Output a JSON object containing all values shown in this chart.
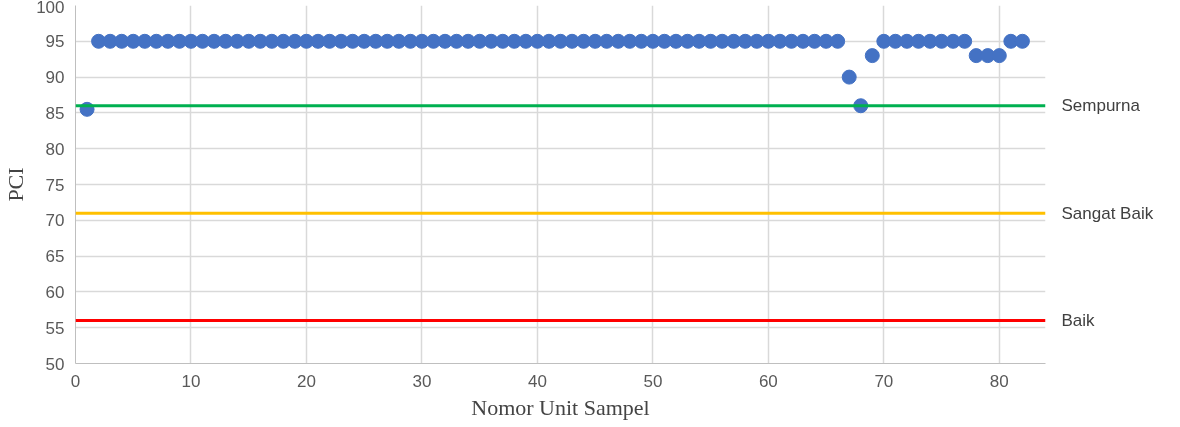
{
  "chart_data": {
    "type": "scatter",
    "xlabel": "Nomor Unit Sampel",
    "ylabel": "PCI",
    "x": [
      1,
      2,
      3,
      4,
      5,
      6,
      7,
      8,
      9,
      10,
      11,
      12,
      13,
      14,
      15,
      16,
      17,
      18,
      19,
      20,
      21,
      22,
      23,
      24,
      25,
      26,
      27,
      28,
      29,
      30,
      31,
      32,
      33,
      34,
      35,
      36,
      37,
      38,
      39,
      40,
      41,
      42,
      43,
      44,
      45,
      46,
      47,
      48,
      49,
      50,
      51,
      52,
      53,
      54,
      55,
      56,
      57,
      58,
      59,
      60,
      61,
      62,
      63,
      64,
      65,
      66,
      67,
      68,
      69,
      70,
      71,
      72,
      73,
      74,
      75,
      76,
      77,
      78,
      79,
      80,
      81,
      82
    ],
    "series": [
      {
        "color": "#4472c4",
        "values": [
          85.5,
          95,
          95,
          95,
          95,
          95,
          95,
          95,
          95,
          95,
          95,
          95,
          95,
          95,
          95,
          95,
          95,
          95,
          95,
          95,
          95,
          95,
          95,
          95,
          95,
          95,
          95,
          95,
          95,
          95,
          95,
          95,
          95,
          95,
          95,
          95,
          95,
          95,
          95,
          95,
          95,
          95,
          95,
          95,
          95,
          95,
          95,
          95,
          95,
          95,
          95,
          95,
          95,
          95,
          95,
          95,
          95,
          95,
          95,
          95,
          95,
          95,
          95,
          95,
          95,
          95,
          90,
          86,
          93,
          95,
          95,
          95,
          95,
          95,
          95,
          95,
          95,
          93,
          93,
          93,
          95,
          95
        ]
      }
    ],
    "marker": "circle",
    "xlim": [
      0,
      84
    ],
    "xticks": [
      0,
      10,
      20,
      30,
      40,
      50,
      60,
      70,
      80
    ],
    "ylim": [
      50,
      100
    ],
    "yticks": [
      50,
      55,
      60,
      65,
      70,
      75,
      80,
      85,
      90,
      95,
      100
    ],
    "grid": true,
    "ref_lines": [
      {
        "axis": "y",
        "value": 86,
        "label": "Sempurna",
        "color": "#00b050"
      },
      {
        "axis": "y",
        "value": 71,
        "label": "Sangat Baik",
        "color": "#ffc000"
      },
      {
        "axis": "y",
        "value": 56,
        "label": "Baik",
        "color": "#ff0000"
      }
    ]
  }
}
